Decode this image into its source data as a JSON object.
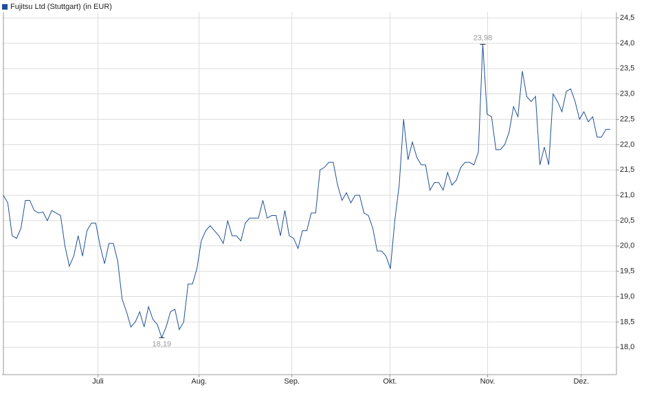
{
  "chart_data": {
    "type": "line",
    "series": [
      {
        "name": "Fujitsu Ltd (Stuttgart) (in EUR)",
        "color": "#1d4f96",
        "values": [
          21.0,
          20.85,
          20.2,
          20.15,
          20.35,
          20.9,
          20.9,
          20.7,
          20.65,
          20.67,
          20.5,
          20.7,
          20.65,
          20.6,
          20.0,
          19.6,
          19.8,
          20.2,
          19.8,
          20.3,
          20.45,
          20.45,
          20.0,
          19.65,
          20.05,
          20.05,
          19.7,
          18.95,
          18.7,
          18.4,
          18.5,
          18.7,
          18.4,
          18.8,
          18.55,
          18.45,
          18.19,
          18.4,
          18.7,
          18.75,
          18.35,
          18.5,
          19.25,
          19.25,
          19.55,
          20.1,
          20.3,
          20.4,
          20.3,
          20.2,
          20.05,
          20.5,
          20.2,
          20.2,
          20.1,
          20.45,
          20.55,
          20.55,
          20.55,
          20.9,
          20.55,
          20.6,
          20.6,
          20.2,
          20.7,
          20.2,
          20.15,
          19.95,
          20.3,
          20.3,
          20.65,
          20.65,
          21.5,
          21.55,
          21.65,
          21.65,
          21.2,
          20.9,
          21.05,
          20.85,
          21.0,
          21.0,
          20.65,
          20.6,
          20.35,
          19.9,
          19.9,
          19.8,
          19.55,
          20.5,
          21.2,
          22.5,
          21.7,
          22.05,
          21.75,
          21.6,
          21.6,
          21.1,
          21.25,
          21.25,
          21.1,
          21.45,
          21.2,
          21.3,
          21.55,
          21.65,
          21.65,
          21.6,
          21.85,
          23.98,
          22.6,
          22.55,
          21.9,
          21.9,
          22.0,
          22.25,
          22.75,
          22.55,
          23.45,
          22.95,
          22.85,
          22.95,
          21.6,
          21.95,
          21.6,
          23.0,
          22.85,
          22.65,
          23.05,
          23.1,
          22.85,
          22.5,
          22.65,
          22.45,
          22.55,
          22.15,
          22.15,
          22.3,
          22.3
        ]
      }
    ],
    "annotations": [
      {
        "value": 23.98,
        "label": "23,98"
      },
      {
        "value": 18.19,
        "label": "18,19"
      }
    ],
    "xlim": [
      -0.3,
      139.4
    ],
    "xticks": [
      {
        "value": 21.5,
        "label": "Juli"
      },
      {
        "value": 44.5,
        "label": "Aug."
      },
      {
        "value": 65.6,
        "label": "Sep."
      },
      {
        "value": 87.9,
        "label": "Okt."
      },
      {
        "value": 110.1,
        "label": "Nov."
      },
      {
        "value": 131.4,
        "label": "Dez."
      }
    ],
    "ylim": [
      17.46,
      24.61
    ],
    "yticks": [
      {
        "value": 18.0,
        "label": "18,0"
      },
      {
        "value": 18.5,
        "label": "18,5"
      },
      {
        "value": 19.0,
        "label": "19,0"
      },
      {
        "value": 19.5,
        "label": "19,5"
      },
      {
        "value": 20.0,
        "label": "20,0"
      },
      {
        "value": 20.5,
        "label": "20,5"
      },
      {
        "value": 21.0,
        "label": "21,0"
      },
      {
        "value": 21.5,
        "label": "21,5"
      },
      {
        "value": 22.0,
        "label": "22,0"
      },
      {
        "value": 22.5,
        "label": "22,5"
      },
      {
        "value": 23.0,
        "label": "23,0"
      },
      {
        "value": 23.5,
        "label": "23,5"
      },
      {
        "value": 24.0,
        "label": "24,0"
      },
      {
        "value": 24.5,
        "label": "24,5"
      }
    ],
    "grid": true
  }
}
